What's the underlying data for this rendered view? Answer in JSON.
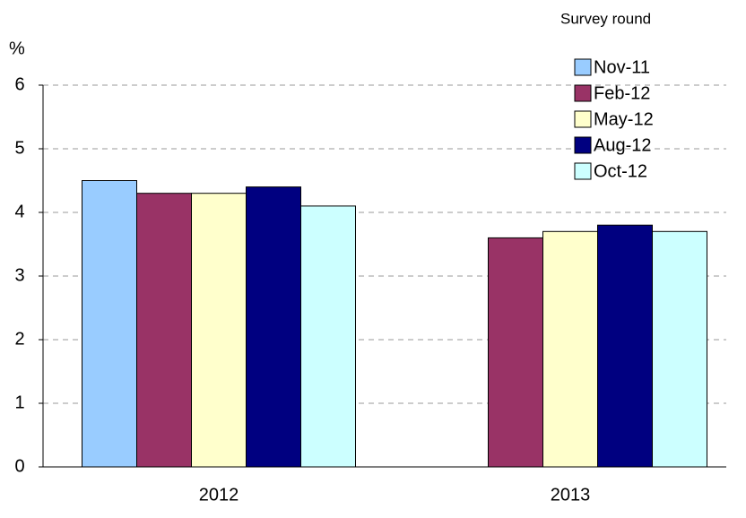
{
  "chart_data": {
    "type": "bar",
    "y_label": "%",
    "legend_title": "Survey round",
    "categories": [
      "2012",
      "2013"
    ],
    "series": [
      {
        "name": "Nov-11",
        "color": "#99ccff",
        "values": [
          4.5,
          null
        ]
      },
      {
        "name": "Feb-12",
        "color": "#993366",
        "values": [
          4.3,
          3.6
        ]
      },
      {
        "name": "May-12",
        "color": "#ffffcc",
        "values": [
          4.3,
          3.7
        ]
      },
      {
        "name": "Aug-12",
        "color": "#000080",
        "values": [
          4.4,
          3.8
        ]
      },
      {
        "name": "Oct-12",
        "color": "#ccffff",
        "values": [
          4.1,
          3.7
        ]
      }
    ],
    "ylim": [
      0,
      6
    ],
    "yticks": [
      0,
      1,
      2,
      3,
      4,
      5,
      6
    ],
    "grid": true,
    "legend_position": "upper right"
  }
}
